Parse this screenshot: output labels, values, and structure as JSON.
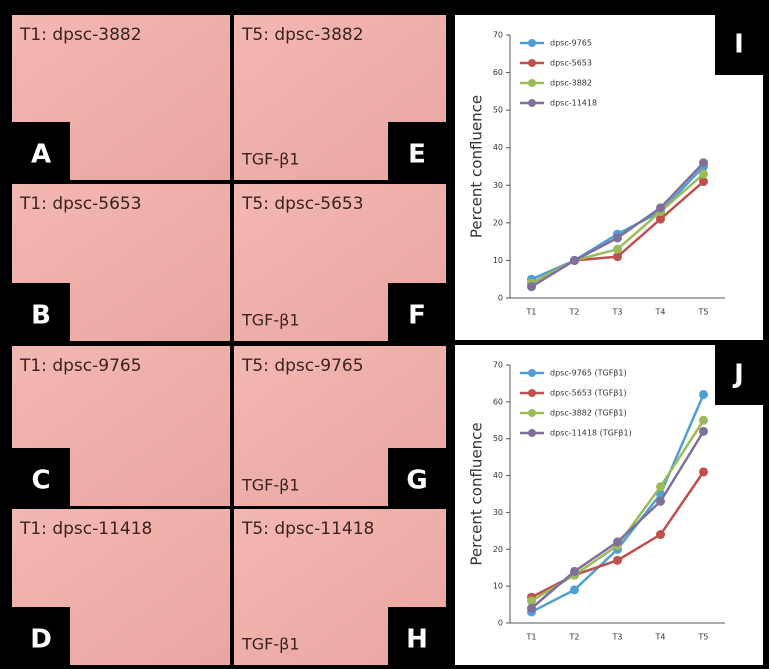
{
  "panels": [
    {
      "caption": "T1: dpsc-3882",
      "letter": "A"
    },
    {
      "caption": "T1: dpsc-5653",
      "letter": "B"
    },
    {
      "caption": "T1: dpsc-9765",
      "letter": "C"
    },
    {
      "caption": "T1: dpsc-11418",
      "letter": "D"
    },
    {
      "caption": "T5: dpsc-3882",
      "treatment": "TGF-β1",
      "letter": "E"
    },
    {
      "caption": "T5: dpsc-5653",
      "treatment": "TGF-β1",
      "letter": "F"
    },
    {
      "caption": "T5: dpsc-9765",
      "treatment": "TGF-β1",
      "letter": "G"
    },
    {
      "caption": "T5: dpsc-11418",
      "treatment": "TGF-β1",
      "letter": "H"
    }
  ],
  "chart_data": [
    {
      "type": "line",
      "letter": "I",
      "y_label": "Percent confluence",
      "categories": [
        "T1",
        "T2",
        "T3",
        "T4",
        "T5"
      ],
      "ylim": [
        0,
        70
      ],
      "yticks": [
        0,
        10,
        20,
        30,
        40,
        50,
        60,
        70
      ],
      "series": [
        {
          "name": "dpsc-9765",
          "color": "#4f9fd6",
          "values": [
            5,
            10,
            17,
            23,
            35
          ]
        },
        {
          "name": "dpsc-5653",
          "color": "#c0504d",
          "values": [
            4,
            10,
            11,
            21,
            31
          ]
        },
        {
          "name": "dpsc-3882",
          "color": "#9bbb59",
          "values": [
            4,
            10,
            13,
            23,
            33
          ]
        },
        {
          "name": "dpsc-11418",
          "color": "#7f6f9a",
          "values": [
            3,
            10,
            16,
            24,
            36
          ]
        }
      ]
    },
    {
      "type": "line",
      "letter": "J",
      "y_label": "Percent confluence",
      "categories": [
        "T1",
        "T2",
        "T3",
        "T4",
        "T5"
      ],
      "ylim": [
        0,
        70
      ],
      "yticks": [
        0,
        10,
        20,
        30,
        40,
        50,
        60,
        70
      ],
      "series": [
        {
          "name": "dpsc-9765 (TGFβ1)",
          "color": "#4f9fd6",
          "values": [
            3,
            9,
            20,
            35,
            62
          ]
        },
        {
          "name": "dpsc-5653 (TGFβ1)",
          "color": "#c0504d",
          "values": [
            7,
            13,
            17,
            24,
            41
          ]
        },
        {
          "name": "dpsc-3882 (TGFβ1)",
          "color": "#9bbb59",
          "values": [
            6,
            13,
            21,
            37,
            55
          ]
        },
        {
          "name": "dpsc-11418 (TGFβ1)",
          "color": "#7f6f9a",
          "values": [
            4,
            14,
            22,
            33,
            52
          ]
        }
      ]
    }
  ]
}
